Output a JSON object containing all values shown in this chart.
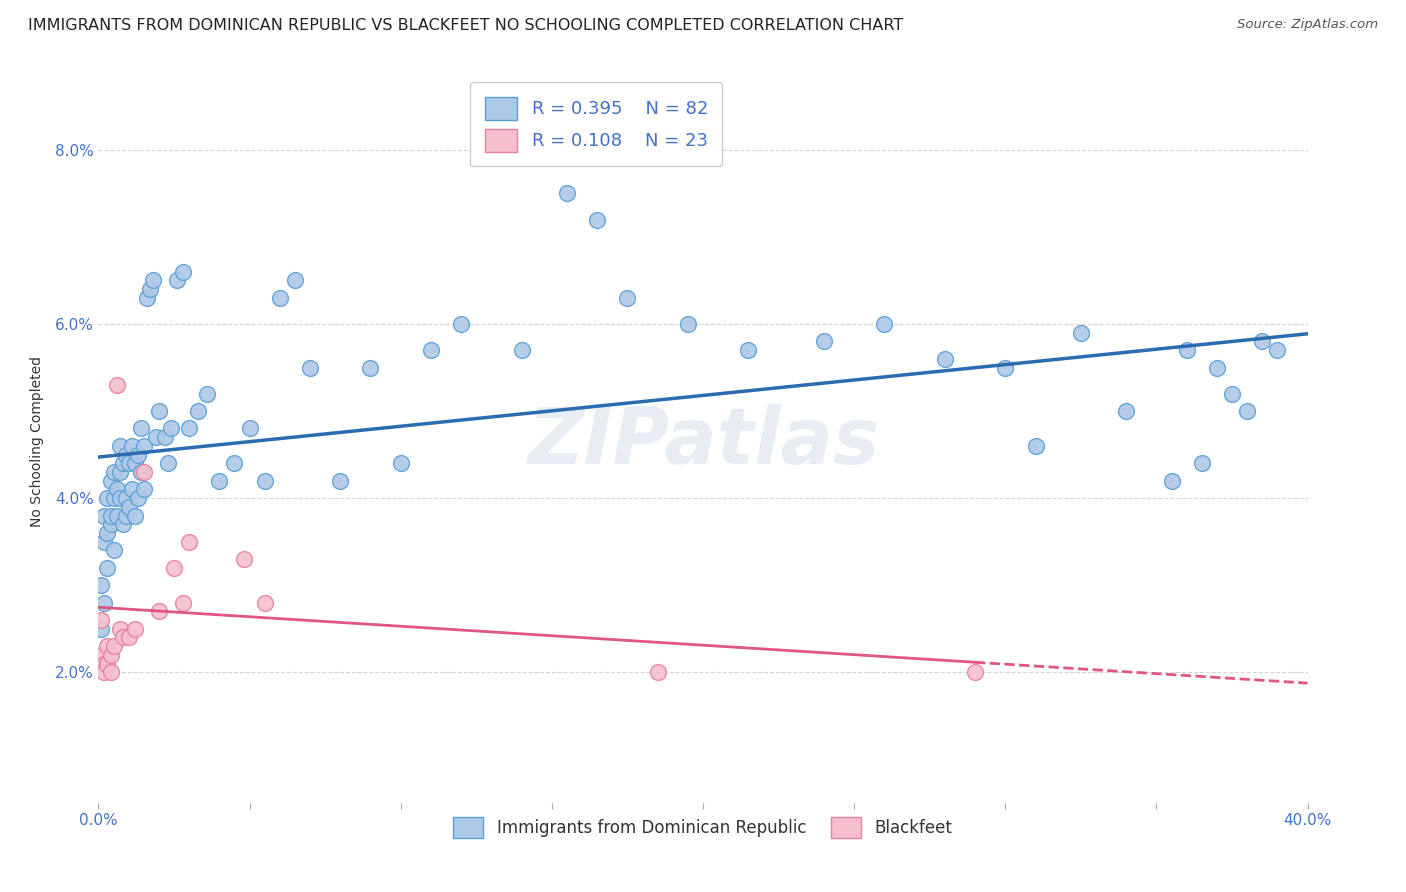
{
  "title": "IMMIGRANTS FROM DOMINICAN REPUBLIC VS BLACKFEET NO SCHOOLING COMPLETED CORRELATION CHART",
  "source": "Source: ZipAtlas.com",
  "ylabel": "No Schooling Completed",
  "xlim": [
    0.0,
    0.4
  ],
  "ylim": [
    0.005,
    0.088
  ],
  "x_ticks": [
    0.0,
    0.05,
    0.1,
    0.15,
    0.2,
    0.25,
    0.3,
    0.35,
    0.4
  ],
  "y_ticks": [
    0.02,
    0.04,
    0.06,
    0.08
  ],
  "y_tick_labels": [
    "2.0%",
    "4.0%",
    "6.0%",
    "8.0%"
  ],
  "blue_color": "#aec8e8",
  "blue_edge_color": "#5a9fd4",
  "pink_color": "#f5bfce",
  "pink_edge_color": "#e87fa0",
  "blue_line_color": "#2b6cb0",
  "pink_line_color": "#e05585",
  "legend_blue_label": "R = 0.395    N = 82",
  "legend_pink_label": "R = 0.108    N = 23",
  "legend_bottom_blue": "Immigrants from Dominican Republic",
  "legend_bottom_pink": "Blackfeet",
  "blue_x": [
    0.001,
    0.001,
    0.002,
    0.002,
    0.002,
    0.003,
    0.003,
    0.003,
    0.004,
    0.004,
    0.004,
    0.005,
    0.005,
    0.005,
    0.006,
    0.006,
    0.007,
    0.007,
    0.007,
    0.008,
    0.008,
    0.009,
    0.009,
    0.009,
    0.01,
    0.01,
    0.011,
    0.011,
    0.012,
    0.012,
    0.013,
    0.013,
    0.014,
    0.014,
    0.015,
    0.015,
    0.016,
    0.017,
    0.018,
    0.019,
    0.02,
    0.022,
    0.023,
    0.024,
    0.026,
    0.028,
    0.03,
    0.033,
    0.036,
    0.04,
    0.045,
    0.05,
    0.055,
    0.06,
    0.065,
    0.07,
    0.08,
    0.09,
    0.1,
    0.11,
    0.12,
    0.14,
    0.155,
    0.165,
    0.175,
    0.195,
    0.215,
    0.24,
    0.26,
    0.28,
    0.3,
    0.31,
    0.325,
    0.34,
    0.355,
    0.36,
    0.365,
    0.37,
    0.375,
    0.38,
    0.385,
    0.39
  ],
  "blue_y": [
    0.025,
    0.03,
    0.028,
    0.035,
    0.038,
    0.032,
    0.036,
    0.04,
    0.037,
    0.042,
    0.038,
    0.034,
    0.04,
    0.043,
    0.038,
    0.041,
    0.04,
    0.043,
    0.046,
    0.037,
    0.044,
    0.038,
    0.04,
    0.045,
    0.039,
    0.044,
    0.041,
    0.046,
    0.038,
    0.044,
    0.04,
    0.045,
    0.043,
    0.048,
    0.041,
    0.046,
    0.063,
    0.064,
    0.065,
    0.047,
    0.05,
    0.047,
    0.044,
    0.048,
    0.065,
    0.066,
    0.048,
    0.05,
    0.052,
    0.042,
    0.044,
    0.048,
    0.042,
    0.063,
    0.065,
    0.055,
    0.042,
    0.055,
    0.044,
    0.057,
    0.06,
    0.057,
    0.075,
    0.072,
    0.063,
    0.06,
    0.057,
    0.058,
    0.06,
    0.056,
    0.055,
    0.046,
    0.059,
    0.05,
    0.042,
    0.057,
    0.044,
    0.055,
    0.052,
    0.05,
    0.058,
    0.057
  ],
  "pink_x": [
    0.001,
    0.001,
    0.002,
    0.002,
    0.003,
    0.003,
    0.004,
    0.004,
    0.005,
    0.006,
    0.007,
    0.008,
    0.01,
    0.012,
    0.015,
    0.02,
    0.025,
    0.028,
    0.03,
    0.048,
    0.055,
    0.185,
    0.29
  ],
  "pink_y": [
    0.026,
    0.022,
    0.021,
    0.02,
    0.023,
    0.021,
    0.022,
    0.02,
    0.023,
    0.053,
    0.025,
    0.024,
    0.024,
    0.025,
    0.043,
    0.027,
    0.032,
    0.028,
    0.035,
    0.033,
    0.028,
    0.02,
    0.02
  ],
  "background_color": "#ffffff",
  "grid_color": "#d0d0d0",
  "title_fontsize": 11.5,
  "axis_label_fontsize": 10,
  "tick_fontsize": 11
}
